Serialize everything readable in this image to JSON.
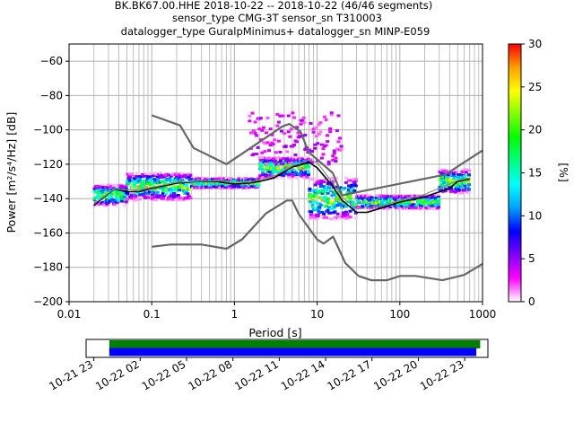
{
  "title_lines": [
    "BK.BK67.00.HHE   2018-10-22 -- 2018-10-22  (46/46 segments)",
    "sensor_type CMG-3T sensor_sn T310003",
    "datalogger_type GuralpMinimus+ datalogger_sn MINP-E059"
  ],
  "chart_data": {
    "type": "heatmap",
    "subtype": "probabilistic power spectral density",
    "xlabel": "Period [s]",
    "ylabel": "Power [m²/s⁴/Hz] [dB]",
    "x_scale": "log",
    "xlim": [
      0.01,
      1000
    ],
    "ylim": [
      -200,
      -50
    ],
    "x_ticks": [
      0.01,
      0.1,
      1,
      10,
      100,
      1000
    ],
    "x_tick_labels": [
      "0.01",
      "0.1",
      "1",
      "10",
      "100",
      "1000"
    ],
    "y_ticks": [
      -200,
      -180,
      -160,
      -140,
      -120,
      -100,
      -80,
      -60
    ],
    "y_tick_labels": [
      "−200",
      "−180",
      "−160",
      "−140",
      "−120",
      "−100",
      "−80",
      "−60"
    ],
    "grid": true,
    "colorbar": {
      "label": "[%]",
      "range": [
        0,
        30
      ],
      "ticks": [
        0,
        5,
        10,
        15,
        20,
        25,
        30
      ],
      "tick_labels": [
        "0",
        "5",
        "10",
        "15",
        "20",
        "25",
        "30"
      ],
      "colormap": [
        "#ffffff",
        "#ff00ff",
        "#8000ff",
        "#0000ff",
        "#00a0ff",
        "#00ffff",
        "#00ff80",
        "#00ff00",
        "#80ff00",
        "#ffff00",
        "#ffa000",
        "#ff0000"
      ]
    },
    "series": [
      {
        "role": "noise-model-high",
        "color": "#666666",
        "points": [
          [
            0.1,
            -91.5
          ],
          [
            0.22,
            -97.4
          ],
          [
            0.32,
            -110.5
          ],
          [
            0.8,
            -120
          ],
          [
            3.8,
            -98
          ],
          [
            4.6,
            -96.5
          ],
          [
            6.3,
            -101
          ],
          [
            7.9,
            -113
          ],
          [
            15.4,
            -125
          ],
          [
            20,
            -138
          ],
          [
            354.8,
            -126
          ],
          [
            1000,
            -112
          ]
        ]
      },
      {
        "role": "noise-model-low",
        "color": "#666666",
        "points": [
          [
            0.1,
            -168
          ],
          [
            0.17,
            -166.7
          ],
          [
            0.4,
            -166.7
          ],
          [
            0.8,
            -169.2
          ],
          [
            1.24,
            -163.7
          ],
          [
            2.4,
            -148.6
          ],
          [
            4.3,
            -141.1
          ],
          [
            5,
            -141.1
          ],
          [
            6,
            -149
          ],
          [
            10,
            -163.8
          ],
          [
            12,
            -166.2
          ],
          [
            15.6,
            -162.1
          ],
          [
            21.9,
            -177.5
          ],
          [
            31.6,
            -185
          ],
          [
            45,
            -187.5
          ],
          [
            70,
            -187.5
          ],
          [
            101,
            -185
          ],
          [
            154,
            -185
          ],
          [
            328,
            -187.5
          ],
          [
            600,
            -184.4
          ],
          [
            1000,
            -178
          ]
        ]
      },
      {
        "role": "mode-curve",
        "color": "#000000",
        "points": [
          [
            0.02,
            -144
          ],
          [
            0.025,
            -140
          ],
          [
            0.035,
            -134.5
          ],
          [
            0.05,
            -136
          ],
          [
            0.07,
            -136
          ],
          [
            0.1,
            -134
          ],
          [
            0.2,
            -131
          ],
          [
            0.35,
            -130
          ],
          [
            0.6,
            -130
          ],
          [
            1,
            -131.5
          ],
          [
            1.5,
            -131
          ],
          [
            2,
            -130
          ],
          [
            3,
            -128
          ],
          [
            5,
            -121.5
          ],
          [
            8,
            -119
          ],
          [
            10,
            -122
          ],
          [
            15,
            -132
          ],
          [
            20,
            -141
          ],
          [
            30,
            -148
          ],
          [
            40,
            -148
          ],
          [
            60,
            -145.5
          ],
          [
            100,
            -142
          ],
          [
            200,
            -139
          ],
          [
            400,
            -134
          ],
          [
            500,
            -130
          ],
          [
            700,
            -128.5
          ]
        ]
      },
      {
        "role": "mean-curve",
        "color": "#888888",
        "points": [
          [
            0.02,
            -143
          ],
          [
            0.035,
            -134.5
          ],
          [
            0.07,
            -135
          ],
          [
            0.2,
            -130.5
          ],
          [
            0.6,
            -129.5
          ],
          [
            1.5,
            -130.5
          ],
          [
            3,
            -127
          ],
          [
            5,
            -121
          ],
          [
            8,
            -117.5
          ],
          [
            10,
            -119
          ],
          [
            15,
            -130
          ],
          [
            20,
            -139
          ],
          [
            30,
            -146
          ],
          [
            60,
            -144.5
          ],
          [
            100,
            -141
          ],
          [
            200,
            -137.5
          ],
          [
            500,
            -129.5
          ],
          [
            700,
            -128
          ]
        ]
      }
    ],
    "density_bands": [
      {
        "x_range": [
          0.02,
          0.05
        ],
        "y_center": -138,
        "spread": 6
      },
      {
        "x_range": [
          0.05,
          0.3
        ],
        "y_center": -133,
        "spread": 8
      },
      {
        "x_range": [
          0.3,
          2
        ],
        "y_center": -131,
        "spread": 3
      },
      {
        "x_range": [
          2,
          8
        ],
        "y_center": -122,
        "spread": 6
      },
      {
        "x_range": [
          8,
          30
        ],
        "y_center": -140,
        "spread": 12
      },
      {
        "x_range": [
          30,
          300
        ],
        "y_center": -142,
        "spread": 4
      },
      {
        "x_range": [
          300,
          700
        ],
        "y_center": -130,
        "spread": 7
      },
      {
        "x_range": [
          1.5,
          20
        ],
        "y_center": -105,
        "spread": 15,
        "sparse": true
      }
    ],
    "data_coverage": {
      "tick_labels": [
        "10-21 23",
        "10-22 02",
        "10-22 05",
        "10-22 08",
        "10-22 11",
        "10-22 14",
        "10-22 17",
        "10-22 20",
        "10-22 23"
      ],
      "range": [
        "2018-10-21 22:30",
        "2018-10-23 00:30"
      ],
      "bars": [
        {
          "role": "used",
          "color": "#008000",
          "start": "2018-10-22 00:00",
          "end": "2018-10-23 00:00"
        },
        {
          "role": "available",
          "color": "#0000ff",
          "start": "2018-10-22 00:00",
          "end": "2018-10-22 23:45"
        }
      ]
    }
  }
}
